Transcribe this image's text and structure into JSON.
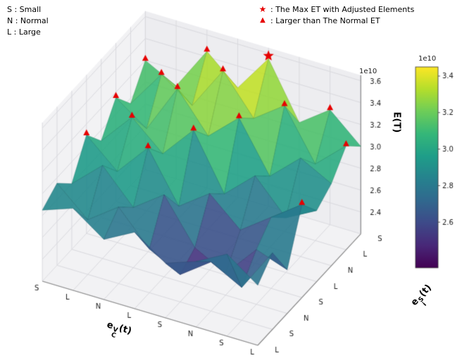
{
  "legend_left": {
    "items": [
      "S :  Small",
      "N :  Normal",
      "L :  Large"
    ]
  },
  "legend_right": {
    "items": [
      {
        "glyph": "★",
        "text": ": The Max ET with Adjusted Elements"
      },
      {
        "glyph": "▲",
        "text": ": Larger than The Normal ET"
      }
    ]
  },
  "axes": {
    "x": {
      "label_base": "e",
      "label_sup": "V",
      "label_sub": "C",
      "label_rest": "(t)"
    },
    "y": {
      "label_base": "e",
      "label_sup": "S",
      "label_sub": "i",
      "label_rest": "(t)"
    },
    "z": {
      "label": "E(T)",
      "offset_text": "1e10"
    }
  },
  "colorbar": {
    "offset_text": "1e10"
  },
  "chart_data": {
    "type": "surface3d",
    "title": "",
    "xlabel": "e_C^V(t)",
    "ylabel": "e_i^S(t)",
    "zlabel": "E(T)",
    "z_unit": "1e10",
    "x_categories": [
      "S",
      "L",
      "N",
      "L",
      "S",
      "N",
      "S",
      "L"
    ],
    "y_categories": [
      "L",
      "S",
      "N",
      "S",
      "L",
      "N",
      "L",
      "S"
    ],
    "z_ticks": [
      2.4,
      2.6,
      2.8,
      3.0,
      3.2,
      3.4,
      3.6
    ],
    "zlim": [
      2.2,
      3.65
    ],
    "color_range": [
      2.35,
      3.45
    ],
    "colorbar_ticks": [
      2.6,
      2.8,
      3.0,
      3.2,
      3.4
    ],
    "colormap": "viridis",
    "z_values": [
      [
        2.85,
        2.95,
        2.75,
        2.9,
        2.7,
        2.8,
        2.95,
        2.75
      ],
      [
        2.95,
        2.7,
        2.9,
        2.6,
        2.45,
        2.65,
        2.5,
        2.9
      ],
      [
        2.8,
        3.05,
        2.75,
        2.95,
        2.55,
        2.4,
        2.7,
        2.6
      ],
      [
        3.1,
        2.85,
        3.15,
        2.7,
        2.9,
        2.65,
        2.85,
        3.05
      ],
      [
        2.9,
        3.2,
        2.95,
        3.25,
        2.75,
        3.0,
        2.7,
        2.85
      ],
      [
        3.15,
        2.95,
        3.4,
        3.05,
        3.3,
        2.85,
        3.1,
        2.95
      ],
      [
        2.95,
        3.3,
        3.1,
        3.5,
        3.15,
        3.35,
        2.9,
        3.15
      ],
      [
        3.2,
        3.05,
        3.45,
        3.2,
        3.55,
        3.05,
        3.25,
        3.0
      ]
    ],
    "markers": {
      "color": "#e60000",
      "star": [
        4,
        7
      ],
      "star_label": "The Max ET with Adjusted Elements",
      "triangles": [
        [
          0,
          7
        ],
        [
          2,
          7
        ],
        [
          6,
          7
        ],
        [
          1,
          6
        ],
        [
          3,
          6
        ],
        [
          5,
          6
        ],
        [
          7,
          6
        ],
        [
          0,
          5
        ],
        [
          2,
          5
        ],
        [
          4,
          5
        ],
        [
          1,
          4
        ],
        [
          3,
          4
        ],
        [
          0,
          3
        ],
        [
          2,
          3
        ],
        [
          7,
          3
        ]
      ],
      "triangle_label": "Larger than The Normal ET"
    }
  }
}
